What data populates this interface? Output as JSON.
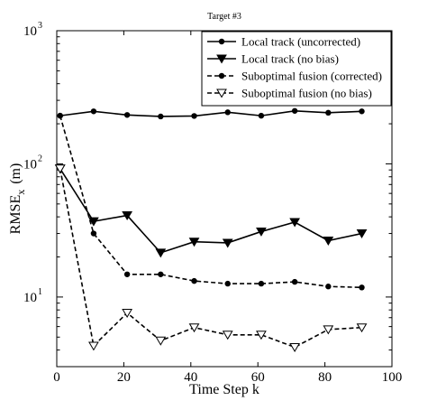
{
  "chart_data": {
    "type": "line",
    "title": "Target #3",
    "xlabel": "Time Step k",
    "ylabel": {
      "base": "RMSE",
      "subscript": "x",
      "unit": "(m)"
    },
    "xlim": [
      0,
      100
    ],
    "ylim": [
      3,
      1000
    ],
    "yscale": "log",
    "grid": false,
    "legend_position": "top-right",
    "x_ticks": [
      "0",
      "20",
      "40",
      "60",
      "80",
      "100"
    ],
    "y_ticks": [
      {
        "base": "10",
        "exp": "1"
      },
      {
        "base": "10",
        "exp": "2"
      },
      {
        "base": "10",
        "exp": "3"
      }
    ],
    "x": [
      1,
      11,
      21,
      31,
      41,
      51,
      61,
      71,
      81,
      91
    ],
    "series": [
      {
        "name": "Local track (uncorrected)",
        "line": "solid",
        "marker": "filled-circle",
        "values": [
          230,
          248,
          233,
          227,
          229,
          244,
          230,
          250,
          242,
          248
        ]
      },
      {
        "name": "Local track (no bias)",
        "line": "solid",
        "marker": "filled-triangle-down",
        "values": [
          92,
          37,
          41,
          21.5,
          26,
          25.5,
          31,
          36.5,
          26.5,
          30
        ]
      },
      {
        "name": "Suboptimal fusion (corrected)",
        "line": "dashed",
        "marker": "filled-circle",
        "values": [
          230,
          30,
          14.8,
          14.8,
          13.2,
          12.6,
          12.6,
          13,
          12,
          11.8
        ]
      },
      {
        "name": "Suboptimal fusion (no bias)",
        "line": "dashed",
        "marker": "open-triangle-down",
        "values": [
          92,
          4.3,
          7.6,
          4.7,
          5.9,
          5.2,
          5.2,
          4.2,
          5.7,
          5.9
        ]
      }
    ]
  }
}
